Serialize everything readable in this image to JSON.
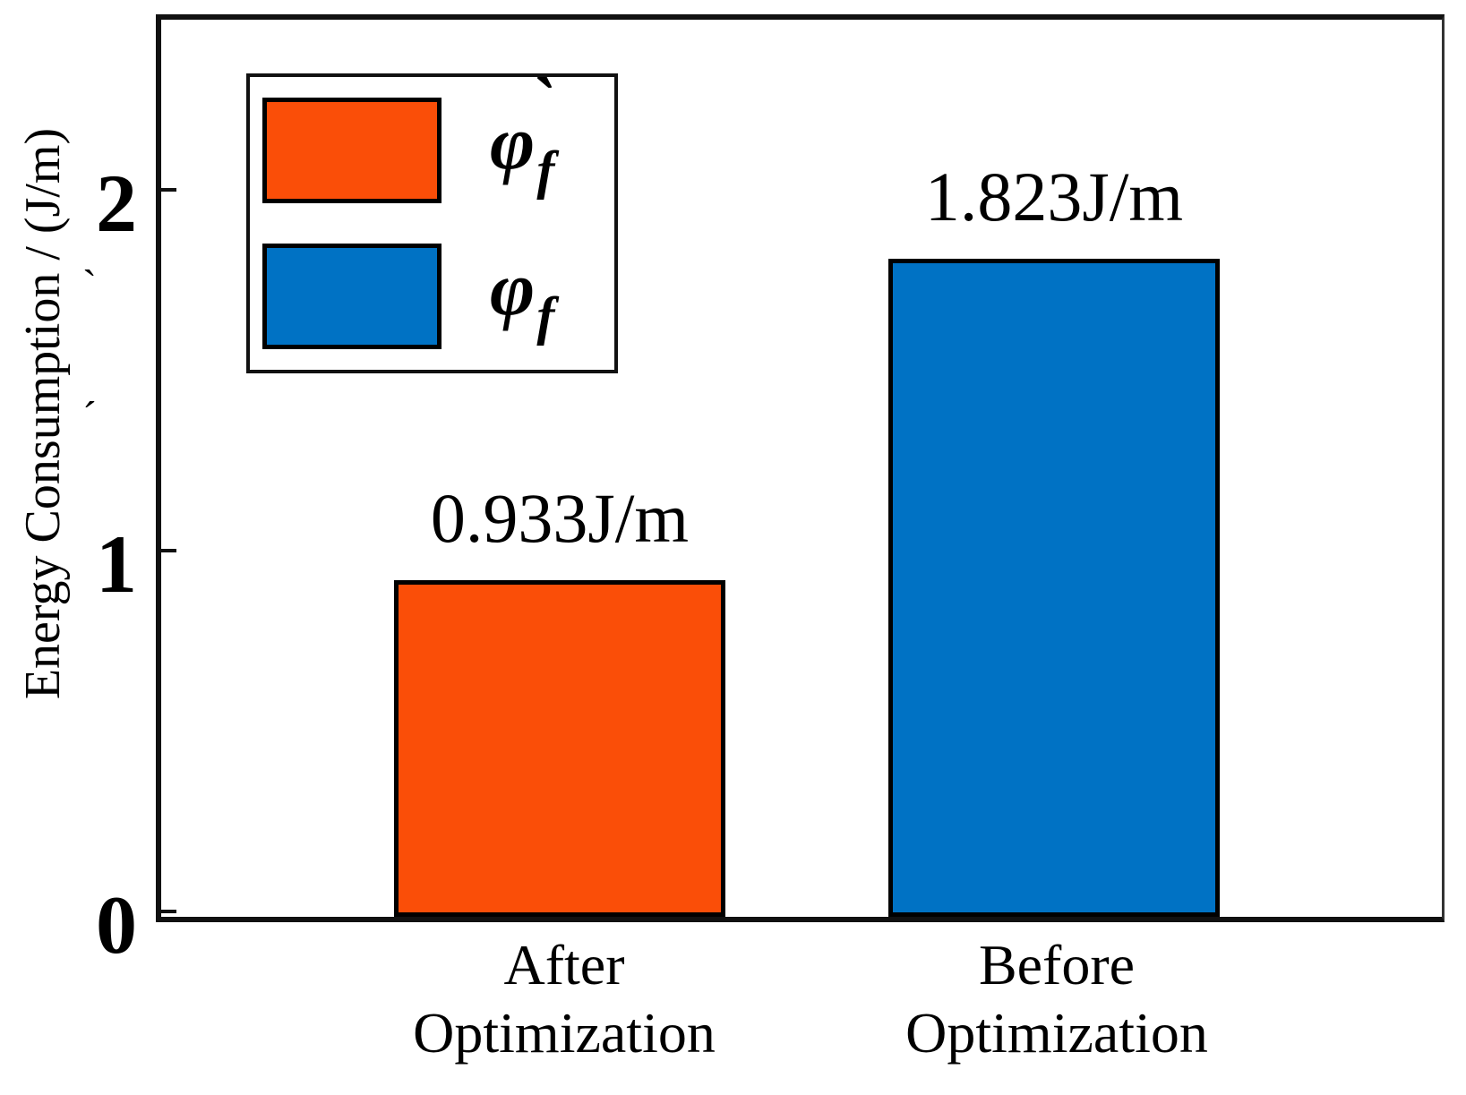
{
  "chart_data": {
    "type": "bar",
    "title": "",
    "xlabel": "",
    "ylabel": "Energy Consumption / (J/m)",
    "ylim": [
      0,
      2.5
    ],
    "yticks": [
      0,
      1,
      2
    ],
    "grid": false,
    "legend_position": "top-left",
    "categories": [
      "After Optimization",
      "Before Optimization"
    ],
    "category_lines": [
      [
        "After",
        "Optimization"
      ],
      [
        "Before",
        "Optimization"
      ]
    ],
    "values": [
      0.933,
      1.823
    ],
    "bars": [
      {
        "category": "After Optimization",
        "value": 0.933,
        "label": "0.933J/m",
        "color": "#FA4E08",
        "series": "φ̀f"
      },
      {
        "category": "Before Optimization",
        "value": 1.823,
        "label": "1.823J/m",
        "color": "#0072C4",
        "series": "φf"
      }
    ],
    "legend": {
      "entries": [
        "φ̀f",
        "φf"
      ],
      "items": [
        {
          "symbol": "φ",
          "accent": "`",
          "subscript": "f",
          "color": "#FA4E08"
        },
        {
          "symbol": "φ",
          "accent": "",
          "subscript": "f",
          "color": "#0072C4"
        }
      ]
    }
  },
  "decorations": {
    "stray_marks": [
      "`",
      "´"
    ]
  },
  "colors": {
    "axis": "#111111",
    "bar_border": "#000000",
    "background": "#ffffff"
  }
}
